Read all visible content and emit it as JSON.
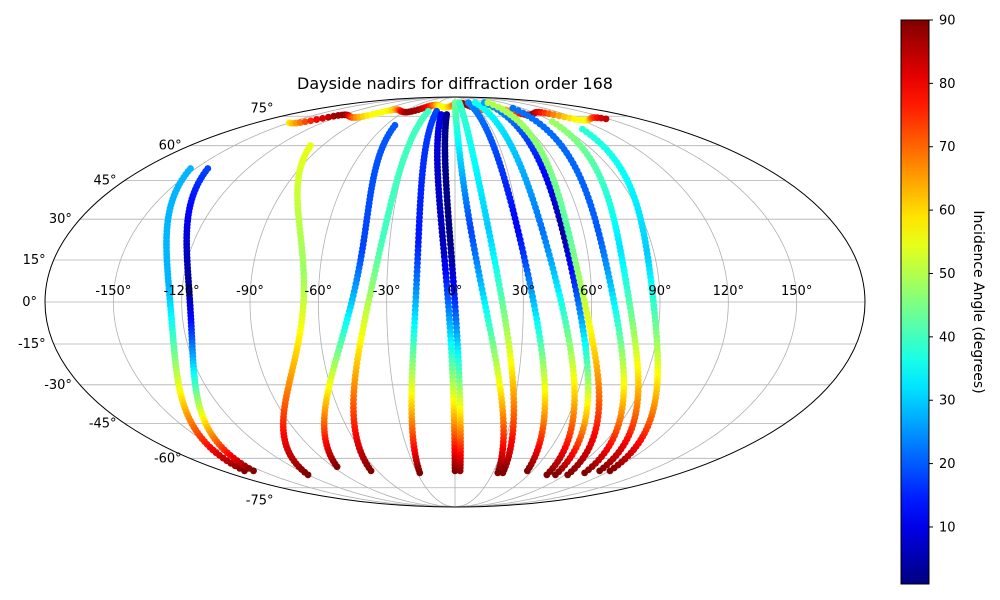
{
  "chart_data": {
    "type": "scatter",
    "projection": "mollweide",
    "title": "Dayside nadirs for diffraction order 168",
    "x_tick_labels": [
      "-150°",
      "-120°",
      "-90°",
      "-60°",
      "-30°",
      "0°",
      "30°",
      "60°",
      "90°",
      "120°",
      "150°"
    ],
    "x_tick_values": [
      -150,
      -120,
      -90,
      -60,
      -30,
      0,
      30,
      60,
      90,
      120,
      150
    ],
    "y_tick_labels": [
      "-75°",
      "-60°",
      "-45°",
      "-30°",
      "-15°",
      "0°",
      "15°",
      "30°",
      "45°",
      "60°",
      "75°"
    ],
    "y_tick_values": [
      -75,
      -60,
      -45,
      -30,
      -15,
      0,
      15,
      30,
      45,
      60,
      75
    ],
    "grid": true,
    "colorbar": {
      "label": "Incidence Angle (degrees)",
      "colormap": "jet",
      "range": [
        1,
        90
      ],
      "tick_values": [
        10,
        20,
        30,
        40,
        50,
        60,
        70,
        80,
        90
      ],
      "tick_labels": [
        "10",
        "20",
        "30",
        "40",
        "50",
        "60",
        "70",
        "80",
        "90"
      ]
    },
    "tracks": [
      {
        "lon_top": -153,
        "lon_bottom": -163,
        "bulge": 33,
        "ang_top": 28,
        "ang_min": 28,
        "ang_bottom": 90,
        "lat_top": 50,
        "lat_bottom": -66
      },
      {
        "lon_top": -143,
        "lon_bottom": -156,
        "bulge": 33,
        "ang_top": 18,
        "ang_min": 3,
        "ang_bottom": 90,
        "lat_top": 50,
        "lat_bottom": -66
      },
      {
        "lon_top": -98,
        "lon_bottom": -120,
        "bulge": 42,
        "ang_top": 55,
        "ang_min": 48,
        "ang_bottom": 90,
        "lat_top": 60,
        "lat_bottom": -68
      },
      {
        "lon_top": -52,
        "lon_bottom": -87,
        "bulge": 25,
        "ang_top": 20,
        "ang_min": 18,
        "ang_bottom": 90,
        "lat_top": 70,
        "lat_bottom": -64
      },
      {
        "lon_top": -32,
        "lon_bottom": -65,
        "bulge": 12,
        "ang_top": 40,
        "ang_min": 40,
        "ang_bottom": 90,
        "lat_top": 78,
        "lat_bottom": -66
      },
      {
        "lon_top": -22,
        "lon_bottom": -28,
        "bulge": 8,
        "ang_top": 18,
        "ang_min": 14,
        "ang_bottom": 90,
        "lat_top": 78,
        "lat_bottom": -67
      },
      {
        "lon_top": -15,
        "lon_bottom": 0,
        "bulge": 4,
        "ang_top": 10,
        "ang_min": 6,
        "ang_bottom": 90,
        "lat_top": 76,
        "lat_bottom": -66
      },
      {
        "lon_top": -9,
        "lon_bottom": 4,
        "bulge": 2,
        "ang_top": 3,
        "ang_min": 1,
        "ang_bottom": 88,
        "lat_top": 76,
        "lat_bottom": -66
      },
      {
        "lon_top": 0,
        "lon_bottom": 34,
        "bulge": -6,
        "ang_top": 45,
        "ang_min": 18,
        "ang_bottom": 90,
        "lat_top": 84,
        "lat_bottom": -67
      },
      {
        "lon_top": 8,
        "lon_bottom": 38,
        "bulge": -4,
        "ang_top": 40,
        "ang_min": 30,
        "ang_bottom": 90,
        "lat_top": 84,
        "lat_bottom": -67
      },
      {
        "lon_top": 25,
        "lon_bottom": 56,
        "bulge": -8,
        "ang_top": 24,
        "ang_min": 12,
        "ang_bottom": 90,
        "lat_top": 84,
        "lat_bottom": -66
      },
      {
        "lon_top": 38,
        "lon_bottom": 75,
        "bulge": -12,
        "ang_top": 36,
        "ang_min": 22,
        "ang_bottom": 90,
        "lat_top": 84,
        "lat_bottom": -68
      },
      {
        "lon_top": 55,
        "lon_bottom": 82,
        "bulge": -16,
        "ang_top": 26,
        "ang_min": 4,
        "ang_bottom": 90,
        "lat_top": 84,
        "lat_bottom": -68
      },
      {
        "lon_top": 62,
        "lon_bottom": 92,
        "bulge": -22,
        "ang_top": 50,
        "ang_min": 42,
        "ang_bottom": 90,
        "lat_top": 84,
        "lat_bottom": -68
      },
      {
        "lon_top": 78,
        "lon_bottom": 103,
        "bulge": -22,
        "ang_top": 22,
        "ang_min": 20,
        "ang_bottom": 90,
        "lat_top": 80,
        "lat_bottom": -67
      },
      {
        "lon_top": 90,
        "lon_bottom": 112,
        "bulge": -25,
        "ang_top": 48,
        "ang_min": 32,
        "ang_bottom": 90,
        "lat_top": 72,
        "lat_bottom": -66
      },
      {
        "lon_top": 104,
        "lon_bottom": 120,
        "bulge": -25,
        "ang_top": 38,
        "ang_min": 30,
        "ang_bottom": 90,
        "lat_top": 68,
        "lat_bottom": -66
      }
    ],
    "north_rim": {
      "lon_start": -150,
      "lon_end": 150,
      "lat": 70
    }
  }
}
